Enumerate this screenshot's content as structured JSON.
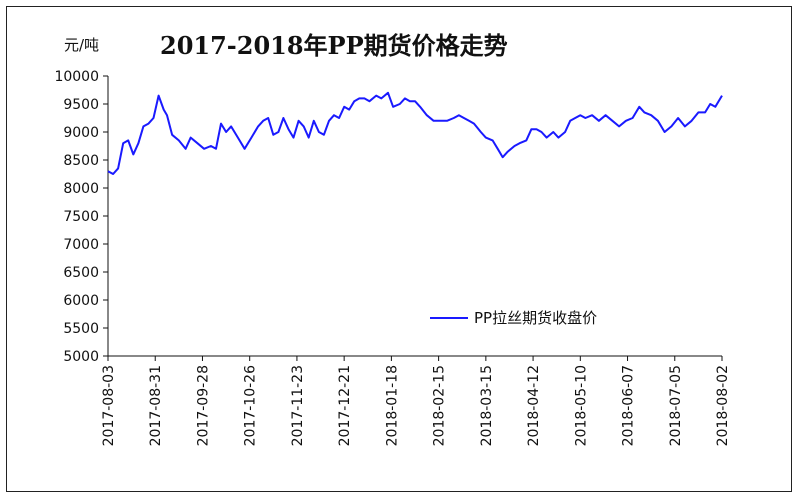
{
  "chart_data": {
    "type": "line",
    "title": "2017-2018年PP期货价格走势",
    "ylabel": "元/吨",
    "xlabel": "",
    "ylim": [
      5000,
      10000
    ],
    "y_ticks": [
      5000,
      5500,
      6000,
      6500,
      7000,
      7500,
      8000,
      8500,
      9000,
      9500,
      10000
    ],
    "x_range": [
      "2017-08-03",
      "2018-08-02"
    ],
    "x_ticks": [
      "2017-08-03",
      "2017-08-31",
      "2017-09-28",
      "2017-10-26",
      "2017-11-23",
      "2017-12-21",
      "2018-01-18",
      "2018-02-15",
      "2018-03-15",
      "2018-04-12",
      "2018-05-10",
      "2018-06-07",
      "2018-07-05",
      "2018-08-02"
    ],
    "grid": false,
    "legend_position": "bottom-right",
    "line_color": "#1a1aff",
    "series": [
      {
        "name": "PP拉丝期货收盘价",
        "points": [
          [
            "2017-08-03",
            8300
          ],
          [
            "2017-08-06",
            8250
          ],
          [
            "2017-08-09",
            8350
          ],
          [
            "2017-08-12",
            8800
          ],
          [
            "2017-08-15",
            8850
          ],
          [
            "2017-08-18",
            8600
          ],
          [
            "2017-08-21",
            8800
          ],
          [
            "2017-08-24",
            9100
          ],
          [
            "2017-08-27",
            9150
          ],
          [
            "2017-08-30",
            9250
          ],
          [
            "2017-09-02",
            9650
          ],
          [
            "2017-09-05",
            9400
          ],
          [
            "2017-09-07",
            9300
          ],
          [
            "2017-09-10",
            8950
          ],
          [
            "2017-09-14",
            8850
          ],
          [
            "2017-09-18",
            8700
          ],
          [
            "2017-09-21",
            8900
          ],
          [
            "2017-09-25",
            8800
          ],
          [
            "2017-09-29",
            8700
          ],
          [
            "2017-10-03",
            8750
          ],
          [
            "2017-10-06",
            8700
          ],
          [
            "2017-10-09",
            9150
          ],
          [
            "2017-10-12",
            9000
          ],
          [
            "2017-10-15",
            9100
          ],
          [
            "2017-10-19",
            8900
          ],
          [
            "2017-10-23",
            8700
          ],
          [
            "2017-10-27",
            8900
          ],
          [
            "2017-10-31",
            9100
          ],
          [
            "2017-11-03",
            9200
          ],
          [
            "2017-11-06",
            9250
          ],
          [
            "2017-11-09",
            8950
          ],
          [
            "2017-11-12",
            9000
          ],
          [
            "2017-11-15",
            9250
          ],
          [
            "2017-11-18",
            9050
          ],
          [
            "2017-11-21",
            8900
          ],
          [
            "2017-11-24",
            9200
          ],
          [
            "2017-11-27",
            9100
          ],
          [
            "2017-11-30",
            8900
          ],
          [
            "2017-12-03",
            9200
          ],
          [
            "2017-12-06",
            9000
          ],
          [
            "2017-12-09",
            8950
          ],
          [
            "2017-12-12",
            9200
          ],
          [
            "2017-12-15",
            9300
          ],
          [
            "2017-12-18",
            9250
          ],
          [
            "2017-12-21",
            9450
          ],
          [
            "2017-12-24",
            9400
          ],
          [
            "2017-12-27",
            9550
          ],
          [
            "2017-12-30",
            9600
          ],
          [
            "2018-01-02",
            9600
          ],
          [
            "2018-01-05",
            9550
          ],
          [
            "2018-01-09",
            9650
          ],
          [
            "2018-01-12",
            9600
          ],
          [
            "2018-01-16",
            9700
          ],
          [
            "2018-01-19",
            9450
          ],
          [
            "2018-01-23",
            9500
          ],
          [
            "2018-01-26",
            9600
          ],
          [
            "2018-01-29",
            9550
          ],
          [
            "2018-02-01",
            9550
          ],
          [
            "2018-02-04",
            9450
          ],
          [
            "2018-02-08",
            9300
          ],
          [
            "2018-02-12",
            9200
          ],
          [
            "2018-02-16",
            9200
          ],
          [
            "2018-02-20",
            9200
          ],
          [
            "2018-02-24",
            9250
          ],
          [
            "2018-02-27",
            9300
          ],
          [
            "2018-03-02",
            9250
          ],
          [
            "2018-03-05",
            9200
          ],
          [
            "2018-03-08",
            9150
          ],
          [
            "2018-03-12",
            9000
          ],
          [
            "2018-03-15",
            8900
          ],
          [
            "2018-03-19",
            8850
          ],
          [
            "2018-03-22",
            8700
          ],
          [
            "2018-03-25",
            8550
          ],
          [
            "2018-03-28",
            8650
          ],
          [
            "2018-04-01",
            8750
          ],
          [
            "2018-04-04",
            8800
          ],
          [
            "2018-04-08",
            8850
          ],
          [
            "2018-04-11",
            9050
          ],
          [
            "2018-04-14",
            9050
          ],
          [
            "2018-04-17",
            9000
          ],
          [
            "2018-04-20",
            8900
          ],
          [
            "2018-04-24",
            9000
          ],
          [
            "2018-04-27",
            8900
          ],
          [
            "2018-05-01",
            9000
          ],
          [
            "2018-05-04",
            9200
          ],
          [
            "2018-05-07",
            9250
          ],
          [
            "2018-05-10",
            9300
          ],
          [
            "2018-05-13",
            9250
          ],
          [
            "2018-05-17",
            9300
          ],
          [
            "2018-05-21",
            9200
          ],
          [
            "2018-05-25",
            9300
          ],
          [
            "2018-05-29",
            9200
          ],
          [
            "2018-06-02",
            9100
          ],
          [
            "2018-06-06",
            9200
          ],
          [
            "2018-06-10",
            9250
          ],
          [
            "2018-06-14",
            9450
          ],
          [
            "2018-06-17",
            9350
          ],
          [
            "2018-06-21",
            9300
          ],
          [
            "2018-06-25",
            9200
          ],
          [
            "2018-06-29",
            9000
          ],
          [
            "2018-07-03",
            9100
          ],
          [
            "2018-07-07",
            9250
          ],
          [
            "2018-07-11",
            9100
          ],
          [
            "2018-07-15",
            9200
          ],
          [
            "2018-07-19",
            9350
          ],
          [
            "2018-07-23",
            9350
          ],
          [
            "2018-07-26",
            9500
          ],
          [
            "2018-07-29",
            9450
          ],
          [
            "2018-08-02",
            9650
          ]
        ]
      }
    ]
  }
}
